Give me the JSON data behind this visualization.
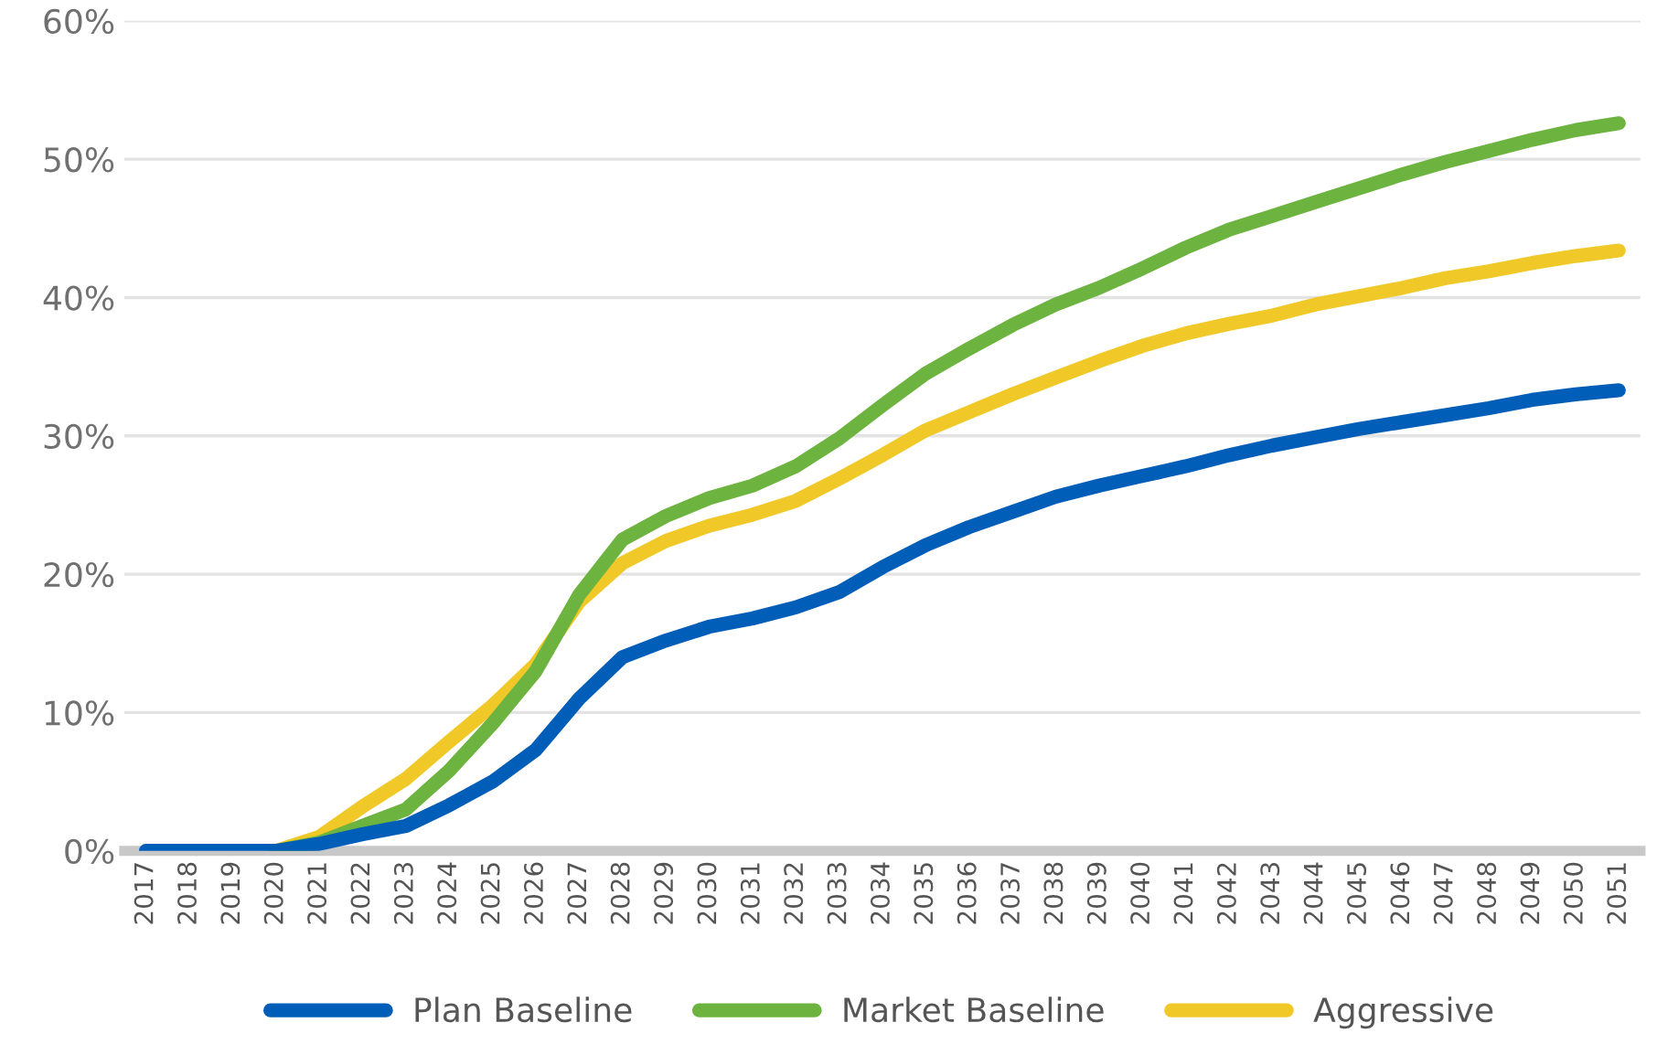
{
  "chart_data": {
    "type": "line",
    "categories": [
      "2017",
      "2018",
      "2019",
      "2020",
      "2021",
      "2022",
      "2023",
      "2024",
      "2025",
      "2026",
      "2027",
      "2028",
      "2029",
      "2030",
      "2031",
      "2032",
      "2033",
      "2034",
      "2035",
      "2036",
      "2037",
      "2038",
      "2039",
      "2040",
      "2041",
      "2042",
      "2043",
      "2044",
      "2045",
      "2046",
      "2047",
      "2048",
      "2049",
      "2050",
      "2051"
    ],
    "series": [
      {
        "name": "Plan Baseline",
        "color": "#005eb8",
        "values": [
          0,
          0,
          0,
          0,
          0.5,
          1.2,
          1.8,
          3.3,
          5,
          7.3,
          11,
          14,
          15.2,
          16.2,
          16.8,
          17.6,
          18.7,
          20.5,
          22.1,
          23.4,
          24.5,
          25.6,
          26.4,
          27.1,
          27.8,
          28.6,
          29.3,
          29.9,
          30.5,
          31,
          31.5,
          32,
          32.6,
          33,
          33.3
        ]
      },
      {
        "name": "Market Baseline",
        "color": "#6db33f",
        "values": [
          null,
          null,
          null,
          0,
          0.6,
          1.8,
          3,
          5.8,
          9.2,
          13,
          18.5,
          22.5,
          24.2,
          25.5,
          26.4,
          27.8,
          29.8,
          32.2,
          34.5,
          36.3,
          38,
          39.5,
          40.7,
          42.1,
          43.6,
          44.9,
          45.9,
          46.9,
          47.9,
          48.9,
          49.8,
          50.6,
          51.4,
          52.1,
          52.6
        ]
      },
      {
        "name": "Aggressive",
        "color": "#f0c929",
        "values": [
          null,
          null,
          null,
          0,
          1,
          3.2,
          5.2,
          7.9,
          10.5,
          13.5,
          18,
          20.8,
          22.4,
          23.5,
          24.3,
          25.3,
          26.9,
          28.6,
          30.4,
          31.7,
          33,
          34.2,
          35.4,
          36.5,
          37.4,
          38.1,
          38.7,
          39.5,
          40.1,
          40.7,
          41.4,
          41.9,
          42.5,
          43,
          43.4
        ]
      }
    ],
    "ylim": [
      0,
      60
    ],
    "yticks": [
      {
        "value": 0,
        "label": "0%"
      },
      {
        "value": 10,
        "label": "10%"
      },
      {
        "value": 20,
        "label": "20%"
      },
      {
        "value": 30,
        "label": "30%"
      },
      {
        "value": 40,
        "label": "40%"
      },
      {
        "value": 50,
        "label": "50%"
      },
      {
        "value": 60,
        "label": "60%"
      }
    ],
    "grid": "y",
    "legend": "bottom",
    "marker": "none",
    "line_style": "solid"
  }
}
